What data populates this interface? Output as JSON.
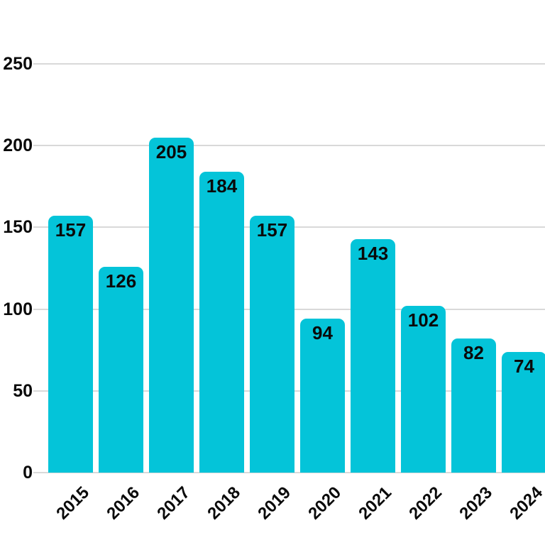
{
  "chart_data": {
    "type": "bar",
    "title": "",
    "xlabel": "",
    "ylabel": "",
    "categories": [
      "2015",
      "2016",
      "2017",
      "2018",
      "2019",
      "2020",
      "2021",
      "2022",
      "2023",
      "2024"
    ],
    "values": [
      157,
      126,
      205,
      184,
      157,
      94,
      143,
      102,
      82,
      74
    ],
    "ylim": [
      0,
      250
    ],
    "yticks": [
      0,
      50,
      100,
      150,
      200,
      250
    ],
    "grid": true,
    "legend": null,
    "bar_color": "#04c4d9",
    "gridline_color": "#d9d9d9",
    "text_color": "#0a0a0a",
    "background_color": "#ffffff",
    "value_labels_shown": true,
    "value_label_position": "inside-top"
  }
}
